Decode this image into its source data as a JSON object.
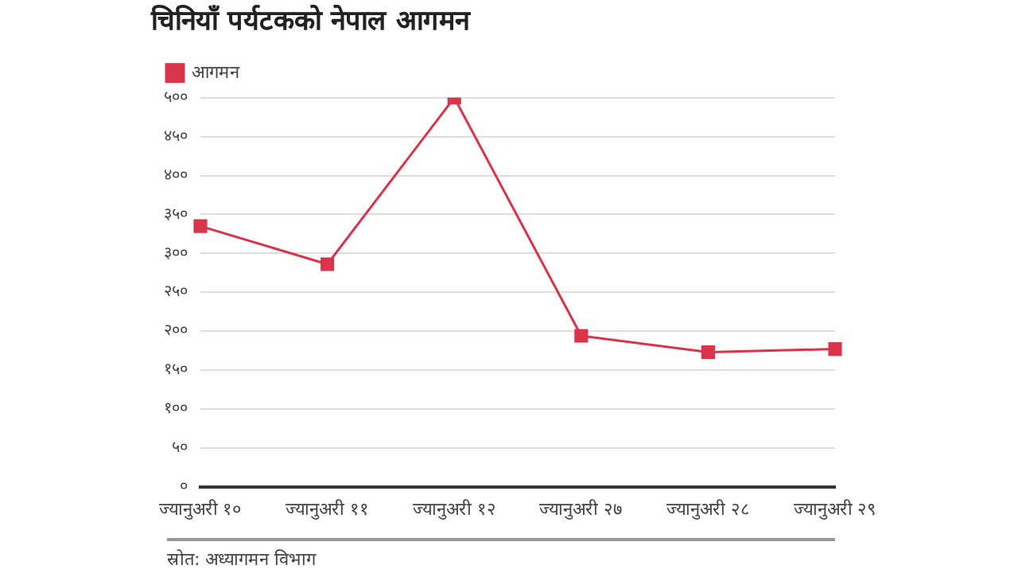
{
  "chart_data": {
    "type": "line",
    "title": "चिनियाँ पर्यटकको नेपाल आगमन",
    "categories": [
      "ज्यानुअरी १०",
      "ज्यानुअरी ११",
      "ज्यानुअरी १२",
      "ज्यानुअरी २७",
      "ज्यानुअरी २८",
      "ज्यानुअरी २९"
    ],
    "series": [
      {
        "name": "आगमन",
        "color": "#d9344a",
        "values": [
          335,
          286,
          500,
          194,
          173,
          177
        ]
      }
    ],
    "ylim": [
      0,
      500
    ],
    "yticks": [
      {
        "value": 0,
        "label": "०"
      },
      {
        "value": 50,
        "label": "५०"
      },
      {
        "value": 100,
        "label": "१००"
      },
      {
        "value": 150,
        "label": "१५०"
      },
      {
        "value": 200,
        "label": "२००"
      },
      {
        "value": 250,
        "label": "२५०"
      },
      {
        "value": 300,
        "label": "३००"
      },
      {
        "value": 350,
        "label": "३५०"
      },
      {
        "value": 400,
        "label": "४००"
      },
      {
        "value": 450,
        "label": "४५०"
      },
      {
        "value": 500,
        "label": "५००"
      }
    ],
    "grid": "y",
    "legend": "top left",
    "marker": "square",
    "line_style": "solid",
    "annotations": [
      "स्रोत: अध्यागमन विभाग"
    ]
  }
}
